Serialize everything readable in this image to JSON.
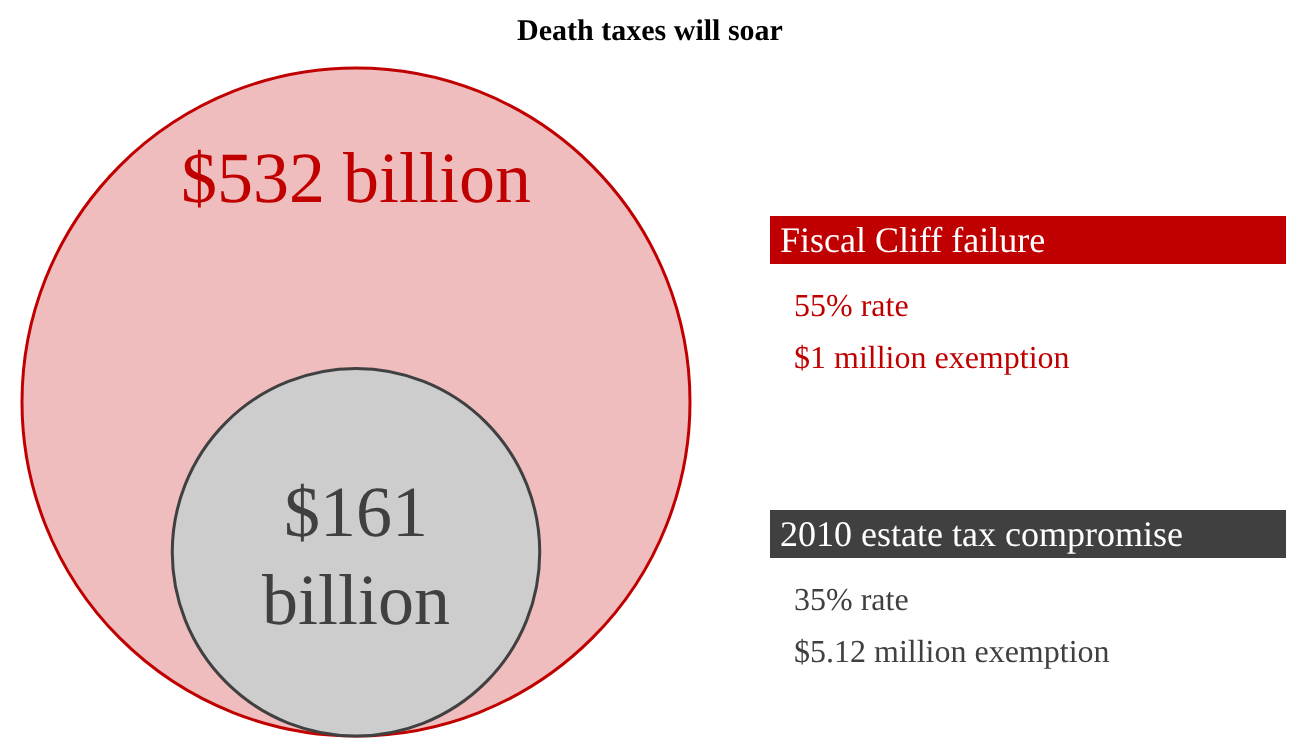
{
  "chart_data": {
    "type": "other",
    "title": "Death taxes will soar",
    "categories": [
      "Fiscal Cliff failure",
      "2010 estate tax compromise"
    ],
    "values": [
      532,
      161
    ],
    "value_labels": [
      "$532 billion",
      "$161 billion"
    ],
    "colors": [
      "#c00000",
      "#404040"
    ],
    "annotations": [
      "55% rate",
      "$1 million exemption",
      "35% rate",
      "$5.12 million exemption"
    ]
  }
}
